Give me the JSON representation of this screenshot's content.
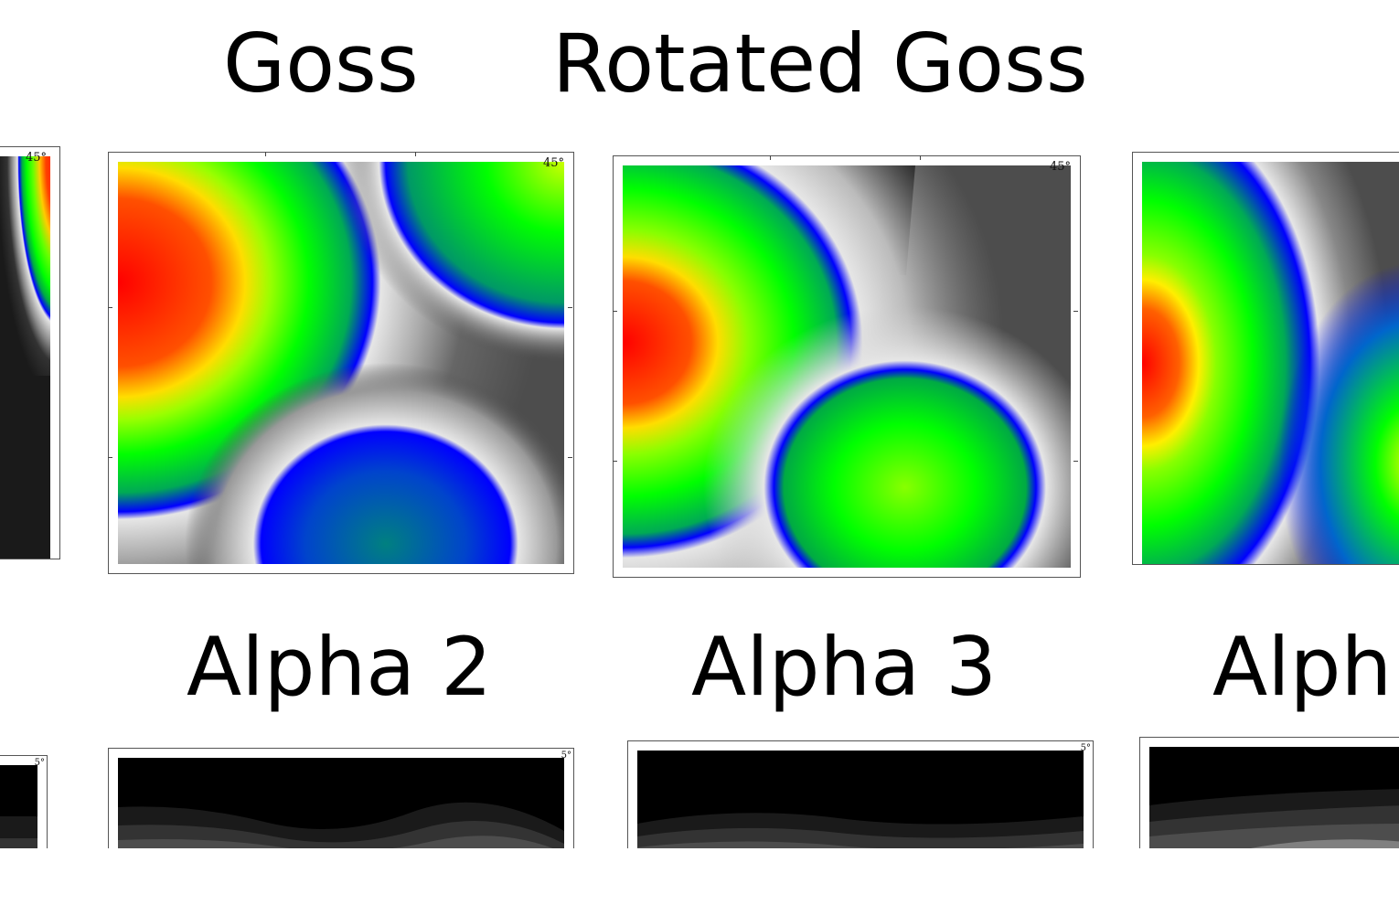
{
  "chart_data": {
    "type": "heatmap",
    "titles": [
      "Goss",
      "Rotated Goss",
      "Alpha 2",
      "Alpha 3",
      "Alph"
    ],
    "panels": [
      {
        "id": "left-edge-top",
        "corner_label": "45°",
        "colors_used": [
          "#ff0000",
          "#ffff00",
          "#00ff00",
          "#0000ff",
          "#1a1a1a"
        ]
      },
      {
        "id": "goss",
        "corner_label": "45°",
        "colors_used": [
          "#ff0000",
          "#ffff00",
          "#00ff00",
          "#0000ff",
          "#e0e0e0",
          "#4d4d4d",
          "#1a1a1a",
          "#000000"
        ]
      },
      {
        "id": "rotated-goss",
        "corner_label": "45°",
        "colors_used": [
          "#ff0000",
          "#ffff00",
          "#00ff00",
          "#0000ff",
          "#e0e0e0",
          "#4d4d4d",
          "#000000"
        ]
      },
      {
        "id": "right-edge-top",
        "corner_label": "",
        "colors_used": [
          "#ff0000",
          "#ffff00",
          "#00ff00",
          "#0000ff",
          "#e0e0e0",
          "#4d4d4d",
          "#000000"
        ]
      },
      {
        "id": "left-edge-bottom",
        "corner_label": "5°",
        "colors_used": [
          "#000000",
          "#333333"
        ]
      },
      {
        "id": "alpha-2",
        "corner_label": "5°",
        "colors_used": [
          "#000000",
          "#1a1a1a",
          "#333333",
          "#4d4d4d"
        ]
      },
      {
        "id": "alpha-3",
        "corner_label": "5°",
        "colors_used": [
          "#000000",
          "#1a1a1a",
          "#333333",
          "#4d4d4d"
        ]
      },
      {
        "id": "alpha-partial",
        "corner_label": "",
        "colors_used": [
          "#000000",
          "#1a1a1a",
          "#333333",
          "#4d4d4d",
          "#808080"
        ]
      }
    ]
  }
}
